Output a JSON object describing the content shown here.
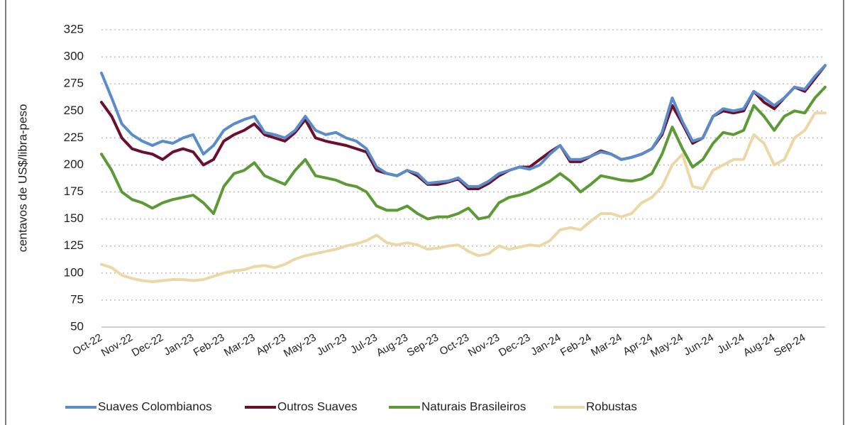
{
  "chart_data": {
    "type": "line",
    "y_label": "centavos de US$/libra-peso",
    "categories": [
      "Oct-22",
      null,
      null,
      "Nov-22",
      null,
      null,
      "Dec-22",
      null,
      null,
      "Jan-23",
      null,
      null,
      "Feb-23",
      null,
      null,
      "Mar-23",
      null,
      null,
      "Apr-23",
      null,
      null,
      "May-23",
      null,
      null,
      "Jun-23",
      null,
      null,
      "Jul-23",
      null,
      null,
      "Aug-23",
      null,
      null,
      "Sep-23",
      null,
      null,
      "Oct-23",
      null,
      null,
      "Nov-23",
      null,
      null,
      "Dec-23",
      null,
      null,
      "Jan-24",
      null,
      null,
      "Feb-24",
      null,
      null,
      "Mar-24",
      null,
      null,
      "Apr-24",
      null,
      null,
      "May-24",
      null,
      null,
      "Jun-24",
      null,
      null,
      "Jul-24",
      null,
      null,
      "Aug-24",
      null,
      null,
      "Sep-24",
      null,
      null
    ],
    "series": [
      {
        "name": "Suaves Colombianos",
        "color": "#5a8ccc",
        "values": [
          285,
          262,
          238,
          228,
          222,
          218,
          222,
          220,
          225,
          228,
          210,
          218,
          232,
          238,
          242,
          245,
          230,
          228,
          225,
          232,
          245,
          232,
          228,
          230,
          225,
          222,
          215,
          198,
          192,
          190,
          195,
          192,
          183,
          184,
          185,
          188,
          180,
          180,
          185,
          192,
          195,
          198,
          196,
          200,
          210,
          218,
          205,
          205,
          208,
          212,
          210,
          205,
          207,
          210,
          215,
          230,
          262,
          240,
          222,
          225,
          245,
          252,
          250,
          252,
          268,
          262,
          255,
          262,
          272,
          270,
          282,
          292
        ]
      },
      {
        "name": "Outros Suaves",
        "color": "#6b0f2b",
        "values": [
          258,
          245,
          225,
          215,
          212,
          210,
          205,
          212,
          215,
          212,
          200,
          205,
          222,
          228,
          232,
          238,
          228,
          225,
          222,
          230,
          242,
          225,
          222,
          220,
          218,
          215,
          212,
          195,
          192,
          190,
          195,
          190,
          182,
          182,
          184,
          187,
          178,
          178,
          183,
          190,
          195,
          198,
          198,
          205,
          212,
          218,
          203,
          203,
          208,
          213,
          210,
          205,
          207,
          210,
          215,
          228,
          255,
          238,
          220,
          225,
          245,
          250,
          248,
          250,
          268,
          258,
          252,
          262,
          272,
          268,
          280,
          292
        ]
      },
      {
        "name": "Naturais Brasileiros",
        "color": "#5c9a36",
        "values": [
          210,
          195,
          175,
          168,
          165,
          160,
          165,
          168,
          170,
          172,
          165,
          155,
          180,
          192,
          195,
          202,
          190,
          186,
          182,
          195,
          205,
          190,
          188,
          186,
          182,
          180,
          175,
          162,
          158,
          158,
          162,
          155,
          150,
          152,
          152,
          155,
          160,
          150,
          152,
          165,
          170,
          172,
          175,
          180,
          185,
          192,
          185,
          175,
          182,
          190,
          188,
          186,
          185,
          187,
          192,
          210,
          235,
          215,
          198,
          205,
          220,
          230,
          228,
          232,
          255,
          245,
          232,
          245,
          250,
          248,
          262,
          272
        ]
      },
      {
        "name": "Robustas",
        "color": "#ecd8a6",
        "values": [
          108,
          105,
          98,
          95,
          93,
          92,
          93,
          94,
          94,
          93,
          94,
          97,
          100,
          102,
          103,
          106,
          107,
          105,
          108,
          113,
          116,
          118,
          120,
          122,
          125,
          127,
          130,
          135,
          128,
          126,
          128,
          126,
          122,
          123,
          125,
          126,
          120,
          116,
          118,
          125,
          122,
          124,
          126,
          125,
          130,
          140,
          142,
          140,
          148,
          155,
          155,
          152,
          155,
          165,
          170,
          180,
          200,
          210,
          180,
          178,
          195,
          200,
          205,
          205,
          228,
          220,
          200,
          205,
          225,
          232,
          248,
          248
        ]
      }
    ],
    "ylim": [
      50,
      325
    ],
    "yticks": [
      50,
      75,
      100,
      125,
      150,
      175,
      200,
      225,
      250,
      275,
      300,
      325
    ],
    "grid": true,
    "legend": "bottom"
  }
}
